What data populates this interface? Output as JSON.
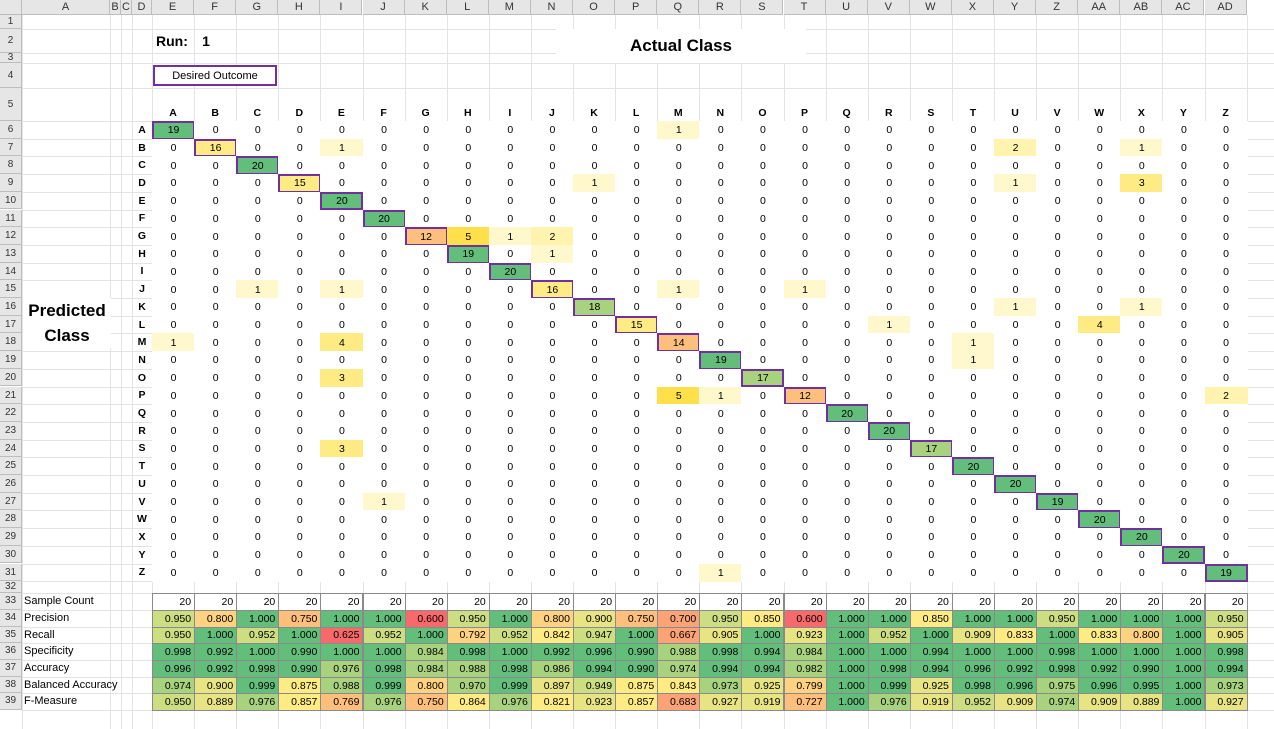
{
  "sheet": {
    "columns": [
      "A",
      "B",
      "C",
      "D",
      "E",
      "F",
      "G",
      "H",
      "I",
      "J",
      "K",
      "L",
      "M",
      "N",
      "O",
      "P",
      "Q",
      "R",
      "S",
      "T",
      "U",
      "V",
      "W",
      "X",
      "Y",
      "Z",
      "AA",
      "AB",
      "AC",
      "AD"
    ],
    "run_label": "Run:",
    "run_value": "1",
    "desired_outcome": "Desired Outcome",
    "actual_class": "Actual Class",
    "predicted_class_line1": "Predicted",
    "predicted_class_line2": "Class"
  },
  "matrix": {
    "classes": [
      "A",
      "B",
      "C",
      "D",
      "E",
      "F",
      "G",
      "H",
      "I",
      "J",
      "K",
      "L",
      "M",
      "N",
      "O",
      "P",
      "Q",
      "R",
      "S",
      "T",
      "U",
      "V",
      "W",
      "X",
      "Y",
      "Z"
    ],
    "rows": [
      [
        19,
        0,
        0,
        0,
        0,
        0,
        0,
        0,
        0,
        0,
        0,
        0,
        1,
        0,
        0,
        0,
        0,
        0,
        0,
        0,
        0,
        0,
        0,
        0,
        0,
        0
      ],
      [
        0,
        16,
        0,
        0,
        1,
        0,
        0,
        0,
        0,
        0,
        0,
        0,
        0,
        0,
        0,
        0,
        0,
        0,
        0,
        0,
        2,
        0,
        0,
        1,
        0,
        0
      ],
      [
        0,
        0,
        20,
        0,
        0,
        0,
        0,
        0,
        0,
        0,
        0,
        0,
        0,
        0,
        0,
        0,
        0,
        0,
        0,
        0,
        0,
        0,
        0,
        0,
        0,
        0
      ],
      [
        0,
        0,
        0,
        15,
        0,
        0,
        0,
        0,
        0,
        0,
        1,
        0,
        0,
        0,
        0,
        0,
        0,
        0,
        0,
        0,
        1,
        0,
        0,
        3,
        0,
        0
      ],
      [
        0,
        0,
        0,
        0,
        20,
        0,
        0,
        0,
        0,
        0,
        0,
        0,
        0,
        0,
        0,
        0,
        0,
        0,
        0,
        0,
        0,
        0,
        0,
        0,
        0,
        0
      ],
      [
        0,
        0,
        0,
        0,
        0,
        20,
        0,
        0,
        0,
        0,
        0,
        0,
        0,
        0,
        0,
        0,
        0,
        0,
        0,
        0,
        0,
        0,
        0,
        0,
        0,
        0
      ],
      [
        0,
        0,
        0,
        0,
        0,
        0,
        12,
        5,
        1,
        2,
        0,
        0,
        0,
        0,
        0,
        0,
        0,
        0,
        0,
        0,
        0,
        0,
        0,
        0,
        0,
        0
      ],
      [
        0,
        0,
        0,
        0,
        0,
        0,
        0,
        19,
        0,
        1,
        0,
        0,
        0,
        0,
        0,
        0,
        0,
        0,
        0,
        0,
        0,
        0,
        0,
        0,
        0,
        0
      ],
      [
        0,
        0,
        0,
        0,
        0,
        0,
        0,
        0,
        20,
        0,
        0,
        0,
        0,
        0,
        0,
        0,
        0,
        0,
        0,
        0,
        0,
        0,
        0,
        0,
        0,
        0
      ],
      [
        0,
        0,
        1,
        0,
        1,
        0,
        0,
        0,
        0,
        16,
        0,
        0,
        1,
        0,
        0,
        1,
        0,
        0,
        0,
        0,
        0,
        0,
        0,
        0,
        0,
        0
      ],
      [
        0,
        0,
        0,
        0,
        0,
        0,
        0,
        0,
        0,
        0,
        18,
        0,
        0,
        0,
        0,
        0,
        0,
        0,
        0,
        0,
        1,
        0,
        0,
        1,
        0,
        0
      ],
      [
        0,
        0,
        0,
        0,
        0,
        0,
        0,
        0,
        0,
        0,
        0,
        15,
        0,
        0,
        0,
        0,
        0,
        1,
        0,
        0,
        0,
        0,
        4,
        0,
        0,
        0
      ],
      [
        1,
        0,
        0,
        0,
        4,
        0,
        0,
        0,
        0,
        0,
        0,
        0,
        14,
        0,
        0,
        0,
        0,
        0,
        0,
        1,
        0,
        0,
        0,
        0,
        0,
        0
      ],
      [
        0,
        0,
        0,
        0,
        0,
        0,
        0,
        0,
        0,
        0,
        0,
        0,
        0,
        19,
        0,
        0,
        0,
        0,
        0,
        1,
        0,
        0,
        0,
        0,
        0,
        0
      ],
      [
        0,
        0,
        0,
        0,
        3,
        0,
        0,
        0,
        0,
        0,
        0,
        0,
        0,
        0,
        17,
        0,
        0,
        0,
        0,
        0,
        0,
        0,
        0,
        0,
        0,
        0
      ],
      [
        0,
        0,
        0,
        0,
        0,
        0,
        0,
        0,
        0,
        0,
        0,
        0,
        5,
        1,
        0,
        12,
        0,
        0,
        0,
        0,
        0,
        0,
        0,
        0,
        0,
        2
      ],
      [
        0,
        0,
        0,
        0,
        0,
        0,
        0,
        0,
        0,
        0,
        0,
        0,
        0,
        0,
        0,
        0,
        20,
        0,
        0,
        0,
        0,
        0,
        0,
        0,
        0,
        0
      ],
      [
        0,
        0,
        0,
        0,
        0,
        0,
        0,
        0,
        0,
        0,
        0,
        0,
        0,
        0,
        0,
        0,
        0,
        20,
        0,
        0,
        0,
        0,
        0,
        0,
        0,
        0
      ],
      [
        0,
        0,
        0,
        0,
        3,
        0,
        0,
        0,
        0,
        0,
        0,
        0,
        0,
        0,
        0,
        0,
        0,
        0,
        17,
        0,
        0,
        0,
        0,
        0,
        0,
        0
      ],
      [
        0,
        0,
        0,
        0,
        0,
        0,
        0,
        0,
        0,
        0,
        0,
        0,
        0,
        0,
        0,
        0,
        0,
        0,
        0,
        20,
        0,
        0,
        0,
        0,
        0,
        0
      ],
      [
        0,
        0,
        0,
        0,
        0,
        0,
        0,
        0,
        0,
        0,
        0,
        0,
        0,
        0,
        0,
        0,
        0,
        0,
        0,
        0,
        20,
        0,
        0,
        0,
        0,
        0
      ],
      [
        0,
        0,
        0,
        0,
        0,
        1,
        0,
        0,
        0,
        0,
        0,
        0,
        0,
        0,
        0,
        0,
        0,
        0,
        0,
        0,
        0,
        19,
        0,
        0,
        0,
        0
      ],
      [
        0,
        0,
        0,
        0,
        0,
        0,
        0,
        0,
        0,
        0,
        0,
        0,
        0,
        0,
        0,
        0,
        0,
        0,
        0,
        0,
        0,
        0,
        20,
        0,
        0,
        0
      ],
      [
        0,
        0,
        0,
        0,
        0,
        0,
        0,
        0,
        0,
        0,
        0,
        0,
        0,
        0,
        0,
        0,
        0,
        0,
        0,
        0,
        0,
        0,
        0,
        20,
        0,
        0
      ],
      [
        0,
        0,
        0,
        0,
        0,
        0,
        0,
        0,
        0,
        0,
        0,
        0,
        0,
        0,
        0,
        0,
        0,
        0,
        0,
        0,
        0,
        0,
        0,
        0,
        20,
        0
      ],
      [
        0,
        0,
        0,
        0,
        0,
        0,
        0,
        0,
        0,
        0,
        0,
        0,
        0,
        1,
        0,
        0,
        0,
        0,
        0,
        0,
        0,
        0,
        0,
        0,
        0,
        19
      ]
    ]
  },
  "metrics": [
    {
      "label": "Sample Count",
      "values": [
        "20",
        "20",
        "20",
        "20",
        "20",
        "20",
        "20",
        "20",
        "20",
        "20",
        "20",
        "20",
        "20",
        "20",
        "20",
        "20",
        "20",
        "20",
        "20",
        "20",
        "20",
        "20",
        "20",
        "20",
        "20",
        "20"
      ]
    },
    {
      "label": "Precision",
      "values": [
        "0.950",
        "0.800",
        "1.000",
        "0.750",
        "1.000",
        "1.000",
        "0.600",
        "0.950",
        "1.000",
        "0.800",
        "0.900",
        "0.750",
        "0.700",
        "0.950",
        "0.850",
        "0.600",
        "1.000",
        "1.000",
        "0.850",
        "1.000",
        "1.000",
        "0.950",
        "1.000",
        "1.000",
        "1.000",
        "0.950"
      ]
    },
    {
      "label": "Recall",
      "values": [
        "0.950",
        "1.000",
        "0.952",
        "1.000",
        "0.625",
        "0.952",
        "1.000",
        "0.792",
        "0.952",
        "0.842",
        "0.947",
        "1.000",
        "0.667",
        "0.905",
        "1.000",
        "0.923",
        "1.000",
        "0.952",
        "1.000",
        "0.909",
        "0.833",
        "1.000",
        "0.833",
        "0.800",
        "1.000",
        "0.905"
      ]
    },
    {
      "label": "Specificity",
      "values": [
        "0.998",
        "0.992",
        "1.000",
        "0.990",
        "1.000",
        "1.000",
        "0.984",
        "0.998",
        "1.000",
        "0.992",
        "0.996",
        "0.990",
        "0.988",
        "0.998",
        "0.994",
        "0.984",
        "1.000",
        "1.000",
        "0.994",
        "1.000",
        "1.000",
        "0.998",
        "1.000",
        "1.000",
        "1.000",
        "0.998"
      ]
    },
    {
      "label": "Accuracy",
      "values": [
        "0.996",
        "0.992",
        "0.998",
        "0.990",
        "0.976",
        "0.998",
        "0.984",
        "0.988",
        "0.998",
        "0.986",
        "0.994",
        "0.990",
        "0.974",
        "0.994",
        "0.994",
        "0.982",
        "1.000",
        "0.998",
        "0.994",
        "0.996",
        "0.992",
        "0.998",
        "0.992",
        "0.990",
        "1.000",
        "0.994"
      ]
    },
    {
      "label": "Balanced Accuracy",
      "values": [
        "0.974",
        "0.900",
        "0.999",
        "0.875",
        "0.988",
        "0.999",
        "0.800",
        "0.970",
        "0.999",
        "0.897",
        "0.949",
        "0.875",
        "0.843",
        "0.973",
        "0.925",
        "0.799",
        "1.000",
        "0.999",
        "0.925",
        "0.998",
        "0.996",
        "0.975",
        "0.996",
        "0.995",
        "1.000",
        "0.973"
      ]
    },
    {
      "label": "F-Measure",
      "values": [
        "0.950",
        "0.889",
        "0.976",
        "0.857",
        "0.769",
        "0.976",
        "0.750",
        "0.864",
        "0.976",
        "0.821",
        "0.923",
        "0.857",
        "0.683",
        "0.927",
        "0.919",
        "0.727",
        "1.000",
        "0.976",
        "0.919",
        "0.952",
        "0.909",
        "0.974",
        "0.909",
        "0.889",
        "1.000",
        "0.927"
      ]
    }
  ],
  "colors": {
    "diag_border": "#7030a0",
    "green": "#63be7b",
    "yellow": "#ffeb84",
    "pale_yellow": "#fff8cc",
    "red": "#f8696b",
    "header_bg": "#e6e6e6"
  }
}
